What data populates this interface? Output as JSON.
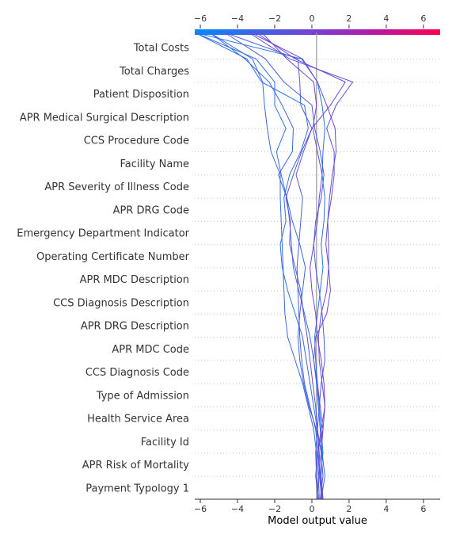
{
  "chart_data": {
    "type": "line",
    "title": "",
    "xlabel": "Model output value",
    "ylabel": "",
    "xlim": [
      -6.3,
      6.9
    ],
    "base_value": 0.25,
    "x_ticks": [
      -6,
      -4,
      -2,
      0,
      2,
      4,
      6
    ],
    "x_tick_labels": [
      "−6",
      "−4",
      "−2",
      "0",
      "2",
      "4",
      "6"
    ],
    "colorbar": {
      "min": -6.3,
      "max": 6.9,
      "low_color": "#008bfb",
      "high_color": "#ff0052"
    },
    "features": [
      "Total Costs",
      "Total Charges",
      "Patient Disposition",
      "APR Medical Surgical Description",
      "CCS Procedure Code",
      "Facility Name",
      "APR Severity of Illness Code",
      "APR DRG Code",
      "Emergency Department Indicator",
      "Operating Certificate Number",
      "APR MDC Description",
      "CCS Diagnosis Description",
      "APR DRG Description",
      "APR MDC Code",
      "CCS Diagnosis Code",
      "Type of Admission",
      "Health Service Area",
      "Facility Id",
      "APR Risk of Mortality",
      "Payment Typology 1"
    ],
    "series": [
      {
        "values": [
          0.55,
          0.45,
          0.6,
          0.5,
          0.4,
          0.3,
          0.2,
          0.15,
          0.3,
          0.45,
          0.6,
          0.5,
          0.65,
          0.7,
          0.55,
          0.6,
          0.7,
          0.55,
          0.3,
          -0.55,
          -6.3
        ]
      },
      {
        "values": [
          0.45,
          0.6,
          0.5,
          0.3,
          0.4,
          0.5,
          0.7,
          0.65,
          0.55,
          0.4,
          0.2,
          0.1,
          0.2,
          0.5,
          0.65,
          0.45,
          0.15,
          0.0,
          -1.5,
          -2.5,
          -4.7
        ]
      },
      {
        "values": [
          0.35,
          0.25,
          0.2,
          0.3,
          0.1,
          -0.1,
          -0.3,
          -0.5,
          -0.9,
          -1.3,
          -1.6,
          -1.7,
          -1.4,
          -1.5,
          -1.2,
          -0.6,
          -0.2,
          -0.4,
          -2.7,
          -3.5,
          -6.3
        ]
      },
      {
        "values": [
          0.6,
          0.5,
          0.55,
          0.45,
          0.35,
          0.25,
          0.1,
          -0.1,
          -0.4,
          -0.7,
          -1.0,
          -1.1,
          -1.2,
          -1.35,
          -1.65,
          -1.9,
          -1.4,
          -2.0,
          -2.0,
          -3.0,
          -6.3
        ]
      },
      {
        "values": [
          0.35,
          0.2,
          0.3,
          0.6,
          0.45,
          0.3,
          0.1,
          0.2,
          0.8,
          1.0,
          0.9,
          0.75,
          0.85,
          1.05,
          1.2,
          1.2,
          0.8,
          1.3,
          2.2,
          -1.2,
          -3.4
        ]
      },
      {
        "values": [
          0.5,
          0.7,
          0.55,
          0.25,
          -0.15,
          -0.45,
          -0.65,
          -0.75,
          -0.65,
          -0.5,
          -0.35,
          -0.65,
          -1.05,
          -1.35,
          -1.8,
          -1.05,
          -1.0,
          -1.6,
          -2.3,
          -3.6,
          -5.5
        ]
      },
      {
        "values": [
          0.4,
          0.35,
          0.25,
          0.1,
          -0.2,
          -0.5,
          -0.9,
          -1.3,
          -1.45,
          -1.5,
          -1.55,
          -1.6,
          -1.65,
          -1.7,
          -1.7,
          -2.2,
          -2.4,
          -2.55,
          -2.65,
          -3.2,
          -5.5
        ]
      },
      {
        "values": [
          0.55,
          0.4,
          0.35,
          0.2,
          -0.1,
          -0.4,
          -0.55,
          -0.65,
          -0.7,
          -0.75,
          -0.8,
          -0.7,
          -0.6,
          -0.5,
          -0.85,
          -0.45,
          0.0,
          -0.6,
          -0.65,
          -0.75,
          -4.7
        ]
      },
      {
        "values": [
          0.5,
          0.45,
          0.4,
          0.3,
          0.2,
          0.05,
          -0.1,
          -0.25,
          -0.45,
          -0.6,
          -0.9,
          -1.2,
          -1.15,
          -1.4,
          -1.0,
          -0.55,
          0.0,
          1.0,
          1.8,
          -0.9,
          -3.0
        ]
      },
      {
        "values": [
          0.3,
          0.35,
          0.5,
          0.6,
          0.7,
          0.55,
          0.4,
          0.35,
          0.5,
          0.8,
          0.9,
          0.9,
          0.85,
          0.95,
          1.1,
          1.3,
          1.25,
          0.8,
          0.3,
          -0.5,
          -3.3
        ]
      },
      {
        "values": [
          0.6,
          0.45,
          0.3,
          0.5,
          0.7,
          0.65,
          0.5,
          0.3,
          0.2,
          0.0,
          -0.1,
          0.1,
          0.3,
          0.4,
          0.55,
          0.3,
          0.05,
          0.25,
          0.1,
          -1.35,
          -2.7
        ]
      }
    ]
  }
}
